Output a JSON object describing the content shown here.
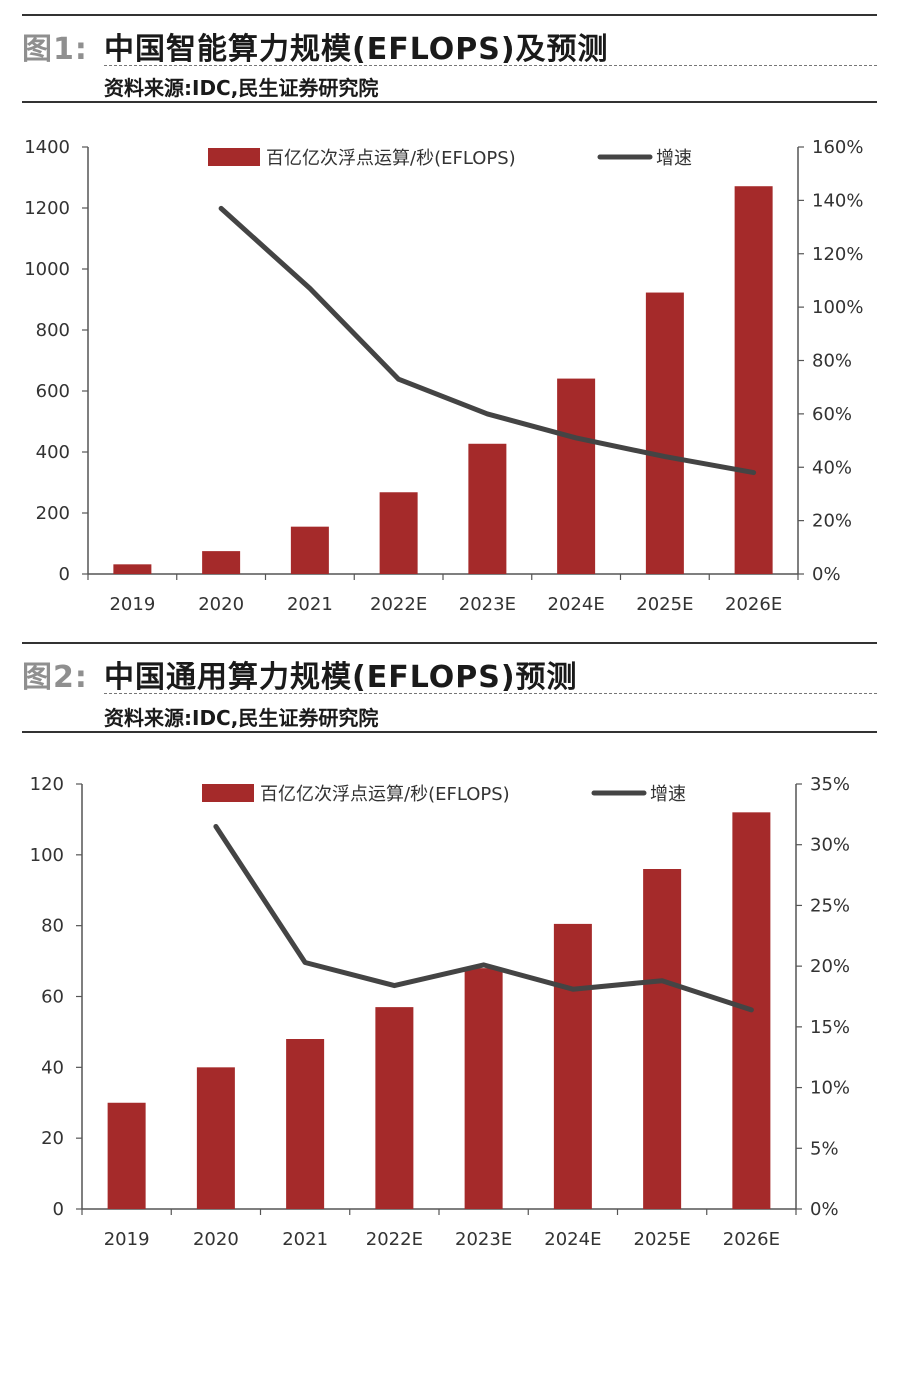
{
  "colors": {
    "bar": "#a52a2a",
    "line": "#444444",
    "axis": "#555555"
  },
  "figures": [
    {
      "label": "图1:",
      "title": "中国智能算力规模(EFLOPS)及预测",
      "source": "资料来源:IDC,民生证券研究院"
    },
    {
      "label": "图2:",
      "title": "中国通用算力规模(EFLOPS)预测",
      "source": "资料来源:IDC,民生证券研究院"
    }
  ],
  "chart_data": [
    {
      "type": "bar",
      "categories": [
        "2019",
        "2020",
        "2021",
        "2022E",
        "2023E",
        "2024E",
        "2025E",
        "2026E"
      ],
      "series": [
        {
          "name": "百亿亿次浮点运算/秒(EFLOPS)",
          "type": "bar",
          "axis": "left",
          "values": [
            31.7,
            75.0,
            155.2,
            268.0,
            427.0,
            640.7,
            922.8,
            1271.4
          ]
        },
        {
          "name": "增速",
          "type": "line",
          "axis": "right",
          "values": [
            null,
            137,
            107,
            73,
            60,
            51,
            44,
            38
          ]
        }
      ],
      "ylim_left": [
        0,
        1400
      ],
      "yticks_left": [
        "0",
        "200",
        "400",
        "600",
        "800",
        "1000",
        "1200",
        "1400"
      ],
      "ylim_right": [
        0,
        160
      ],
      "yticks_right": [
        "0%",
        "20%",
        "40%",
        "60%",
        "80%",
        "100%",
        "120%",
        "140%",
        "160%"
      ],
      "legend_position": "top",
      "grid": false
    },
    {
      "type": "bar",
      "categories": [
        "2019",
        "2020",
        "2021",
        "2022E",
        "2023E",
        "2024E",
        "2025E",
        "2026E"
      ],
      "series": [
        {
          "name": "百亿亿次浮点运算/秒(EFLOPS)",
          "type": "bar",
          "axis": "left",
          "values": [
            30,
            40,
            48,
            57,
            68,
            80.5,
            96,
            112
          ]
        },
        {
          "name": "增速",
          "type": "line",
          "axis": "right",
          "values": [
            null,
            31.5,
            20.3,
            18.4,
            20.1,
            18.1,
            18.8,
            16.4
          ]
        }
      ],
      "ylim_left": [
        0,
        120
      ],
      "yticks_left": [
        "0",
        "20",
        "40",
        "60",
        "80",
        "100",
        "120"
      ],
      "ylim_right": [
        0,
        35
      ],
      "yticks_right": [
        "0%",
        "5%",
        "10%",
        "15%",
        "20%",
        "25%",
        "30%",
        "35%"
      ],
      "legend_position": "top",
      "grid": false
    }
  ]
}
